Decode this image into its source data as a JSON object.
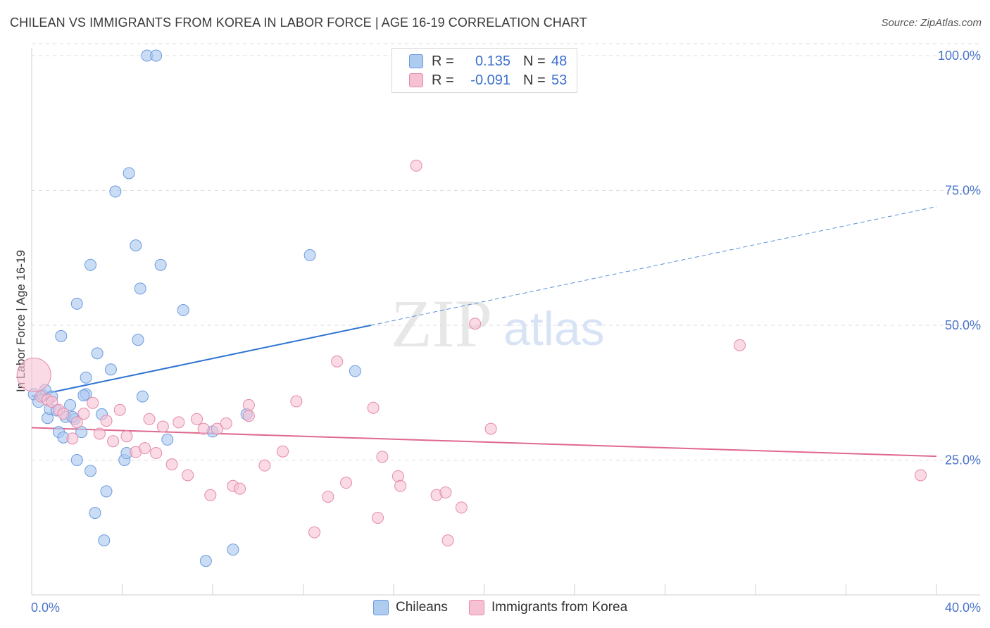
{
  "title": "CHILEAN VS IMMIGRANTS FROM KOREA IN LABOR FORCE | AGE 16-19 CORRELATION CHART",
  "source": "Source: ZipAtlas.com",
  "watermark": {
    "zip": "ZIP",
    "atlas": "atlas"
  },
  "legend": {
    "rows": [
      {
        "r_label": "R =",
        "r_value": "0.135",
        "n_label": "N =",
        "n_value": "48"
      },
      {
        "r_label": "R =",
        "r_value": "-0.091",
        "n_label": "N =",
        "n_value": "53"
      }
    ]
  },
  "bottom_legend": {
    "series1": "Chileans",
    "series2": "Immigrants from Korea"
  },
  "colors": {
    "blue_fill": "#aecbf0",
    "blue_stroke": "#6b9be0",
    "blue_line": "#2f73d1",
    "pink_fill": "#f6c2d3",
    "pink_stroke": "#e58aa8",
    "pink_line": "#e0688f"
  },
  "chart_data": {
    "type": "scatter",
    "title": "CHILEAN VS IMMIGRANTS FROM KOREA IN LABOR FORCE | AGE 16-19 CORRELATION CHART",
    "xlabel": "",
    "ylabel": "In Labor Force | Age 16-19",
    "xlim": [
      0,
      40
    ],
    "ylim": [
      0,
      105
    ],
    "x_tick_labels": [
      "0.0%",
      "40.0%"
    ],
    "y_ticks": [
      25,
      50,
      75,
      100
    ],
    "y_tick_labels": [
      "25.0%",
      "50.0%",
      "75.0%",
      "100.0%"
    ],
    "series": [
      {
        "name": "Chileans",
        "r": 0.135,
        "n": 48,
        "trend": {
          "x_start": 0,
          "y_start": 36.8,
          "x_solid_end": 15,
          "y_solid_end": 50.0,
          "x_end": 40,
          "y_end": 72.0
        },
        "points": [
          [
            0.1,
            37.2
          ],
          [
            0.3,
            35.8
          ],
          [
            0.5,
            37.0
          ],
          [
            0.6,
            38.0
          ],
          [
            0.9,
            36.8
          ],
          [
            0.7,
            32.8
          ],
          [
            0.8,
            34.5
          ],
          [
            1.1,
            34.2
          ],
          [
            1.2,
            30.2
          ],
          [
            1.4,
            29.2
          ],
          [
            1.5,
            33.0
          ],
          [
            1.7,
            35.2
          ],
          [
            1.9,
            32.6
          ],
          [
            2.0,
            25.0
          ],
          [
            2.2,
            30.2
          ],
          [
            2.4,
            37.2
          ],
          [
            2.4,
            40.3
          ],
          [
            2.6,
            23.0
          ],
          [
            2.8,
            15.2
          ],
          [
            2.9,
            44.8
          ],
          [
            3.1,
            33.5
          ],
          [
            3.3,
            19.2
          ],
          [
            3.5,
            41.8
          ],
          [
            3.7,
            74.8
          ],
          [
            4.1,
            25.0
          ],
          [
            4.2,
            26.3
          ],
          [
            4.3,
            78.2
          ],
          [
            4.6,
            64.8
          ],
          [
            4.7,
            47.3
          ],
          [
            4.8,
            56.8
          ],
          [
            4.9,
            36.8
          ],
          [
            5.1,
            100.0
          ],
          [
            5.5,
            100.0
          ],
          [
            5.7,
            61.2
          ],
          [
            6.0,
            28.8
          ],
          [
            6.7,
            52.8
          ],
          [
            7.7,
            6.3
          ],
          [
            8.0,
            30.3
          ],
          [
            8.9,
            8.4
          ],
          [
            9.5,
            33.5
          ],
          [
            12.3,
            63.0
          ],
          [
            14.3,
            41.5
          ],
          [
            1.8,
            33.0
          ],
          [
            2.0,
            54.0
          ],
          [
            2.6,
            61.2
          ],
          [
            1.3,
            48.0
          ],
          [
            3.2,
            10.1
          ],
          [
            2.3,
            37.0
          ]
        ]
      },
      {
        "name": "Immigrants from Korea",
        "r": -0.091,
        "n": 53,
        "trend": {
          "x_start": 0,
          "y_start": 31.0,
          "x_end": 40,
          "y_end": 25.7
        },
        "points": [
          [
            0.1,
            40.8
          ],
          [
            0.4,
            36.8
          ],
          [
            0.7,
            36.2
          ],
          [
            0.9,
            35.8
          ],
          [
            1.2,
            34.3
          ],
          [
            1.4,
            33.6
          ],
          [
            1.8,
            29.0
          ],
          [
            2.0,
            32.0
          ],
          [
            2.3,
            33.6
          ],
          [
            2.7,
            35.6
          ],
          [
            3.0,
            29.9
          ],
          [
            3.3,
            32.3
          ],
          [
            3.6,
            28.5
          ],
          [
            3.9,
            34.3
          ],
          [
            4.2,
            29.4
          ],
          [
            4.6,
            26.5
          ],
          [
            5.0,
            27.2
          ],
          [
            5.2,
            32.6
          ],
          [
            5.5,
            26.3
          ],
          [
            5.8,
            31.2
          ],
          [
            6.2,
            24.2
          ],
          [
            6.5,
            32.0
          ],
          [
            6.9,
            22.2
          ],
          [
            7.3,
            32.6
          ],
          [
            7.6,
            30.8
          ],
          [
            7.9,
            18.5
          ],
          [
            8.2,
            30.8
          ],
          [
            8.6,
            31.8
          ],
          [
            8.9,
            20.2
          ],
          [
            9.2,
            19.7
          ],
          [
            9.6,
            35.2
          ],
          [
            10.3,
            24.0
          ],
          [
            11.1,
            26.6
          ],
          [
            11.7,
            35.9
          ],
          [
            12.5,
            11.6
          ],
          [
            13.1,
            18.2
          ],
          [
            13.5,
            43.3
          ],
          [
            13.9,
            20.8
          ],
          [
            15.1,
            34.7
          ],
          [
            15.3,
            14.3
          ],
          [
            15.5,
            25.6
          ],
          [
            16.2,
            22.0
          ],
          [
            16.3,
            20.2
          ],
          [
            17.0,
            79.6
          ],
          [
            17.9,
            18.5
          ],
          [
            18.3,
            19.0
          ],
          [
            18.4,
            10.1
          ],
          [
            19.0,
            16.2
          ],
          [
            19.6,
            50.3
          ],
          [
            20.3,
            30.8
          ],
          [
            31.3,
            46.3
          ],
          [
            39.3,
            22.2
          ],
          [
            9.6,
            33.2
          ]
        ]
      }
    ]
  }
}
